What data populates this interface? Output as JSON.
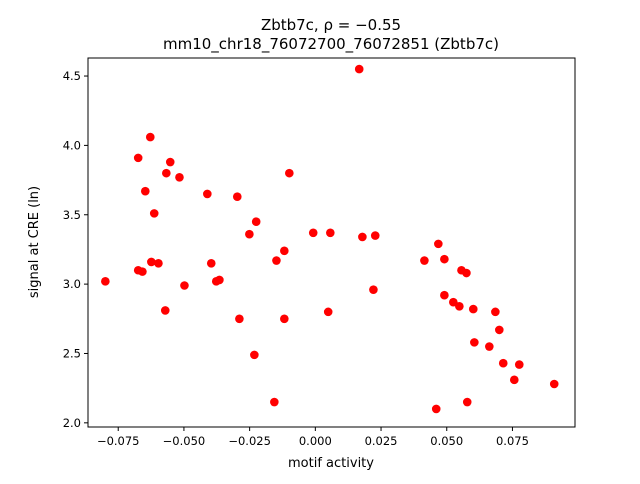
{
  "chart_data": {
    "type": "scatter",
    "title_line1": "Zbtb7c, ρ = −0.55",
    "title_line2": "mm10_chr18_76072700_76072851 (Zbtb7c)",
    "xlabel": "motif activity",
    "ylabel": "signal at CRE (ln)",
    "xlim": [
      -0.0865,
      0.0988
    ],
    "ylim": [
      1.97,
      4.63
    ],
    "xticks": [
      -0.075,
      -0.05,
      -0.025,
      0.0,
      0.025,
      0.05,
      0.075
    ],
    "xtick_labels": [
      "−0.075",
      "−0.050",
      "−0.025",
      "0.000",
      "0.025",
      "0.050",
      "0.075"
    ],
    "yticks": [
      2.0,
      2.5,
      3.0,
      3.5,
      4.0,
      4.5
    ],
    "ytick_labels": [
      "2.0",
      "2.5",
      "3.0",
      "3.5",
      "4.0",
      "4.5"
    ],
    "grid": false,
    "marker_color": "#ff0000",
    "points": [
      [
        0.0167,
        4.55
      ],
      [
        -0.0628,
        4.06
      ],
      [
        -0.0674,
        3.91
      ],
      [
        -0.0552,
        3.88
      ],
      [
        -0.0517,
        3.77
      ],
      [
        -0.0567,
        3.8
      ],
      [
        -0.0647,
        3.67
      ],
      [
        -0.0099,
        3.8
      ],
      [
        -0.0411,
        3.65
      ],
      [
        -0.0297,
        3.63
      ],
      [
        -0.0613,
        3.51
      ],
      [
        -0.0225,
        3.45
      ],
      [
        -0.0251,
        3.36
      ],
      [
        -0.0008,
        3.37
      ],
      [
        0.0057,
        3.37
      ],
      [
        0.0179,
        3.34
      ],
      [
        0.0228,
        3.35
      ],
      [
        0.0468,
        3.29
      ],
      [
        -0.0118,
        3.24
      ],
      [
        -0.0624,
        3.16
      ],
      [
        -0.0597,
        3.15
      ],
      [
        -0.0148,
        3.17
      ],
      [
        -0.0396,
        3.15
      ],
      [
        0.0415,
        3.17
      ],
      [
        0.0491,
        3.18
      ],
      [
        -0.0674,
        3.1
      ],
      [
        -0.0658,
        3.09
      ],
      [
        0.0556,
        3.1
      ],
      [
        0.0575,
        3.08
      ],
      [
        -0.0799,
        3.02
      ],
      [
        -0.0377,
        3.02
      ],
      [
        -0.0365,
        3.03
      ],
      [
        -0.0498,
        2.99
      ],
      [
        0.0221,
        2.96
      ],
      [
        0.0491,
        2.92
      ],
      [
        0.0525,
        2.87
      ],
      [
        0.0548,
        2.84
      ],
      [
        0.0601,
        2.82
      ],
      [
        -0.0571,
        2.81
      ],
      [
        0.0049,
        2.8
      ],
      [
        0.0685,
        2.8
      ],
      [
        -0.0289,
        2.75
      ],
      [
        -0.0118,
        2.75
      ],
      [
        0.07,
        2.67
      ],
      [
        0.0605,
        2.58
      ],
      [
        0.0662,
        2.55
      ],
      [
        -0.0232,
        2.49
      ],
      [
        0.0715,
        2.43
      ],
      [
        0.0776,
        2.42
      ],
      [
        0.0757,
        2.31
      ],
      [
        0.0909,
        2.28
      ],
      [
        -0.0156,
        2.15
      ],
      [
        0.0578,
        2.15
      ],
      [
        0.046,
        2.1
      ]
    ]
  }
}
